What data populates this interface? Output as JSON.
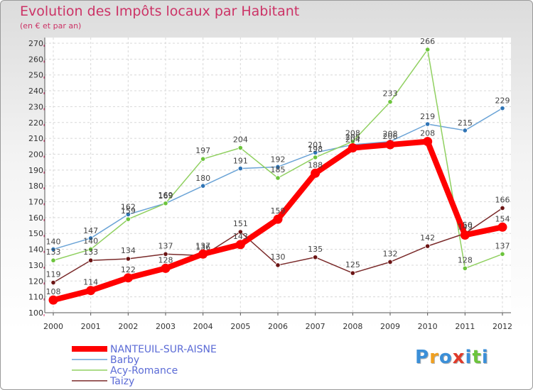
{
  "chart_data": {
    "type": "line",
    "title": "Evolution des Impôts locaux par Habitant",
    "subtitle": "(en € et par an)",
    "xlabel": "",
    "ylabel": "",
    "x": [
      "2000",
      "2001",
      "2002",
      "2003",
      "2004",
      "2005",
      "2006",
      "2007",
      "2008",
      "2009",
      "2010",
      "2011",
      "2012"
    ],
    "ylim": [
      100,
      270
    ],
    "yticks": [
      100,
      110,
      120,
      130,
      140,
      150,
      160,
      170,
      180,
      190,
      200,
      210,
      220,
      230,
      240,
      250,
      260,
      270
    ],
    "grid": true,
    "legend_position": "bottom-left",
    "series": [
      {
        "name": "Barby",
        "color": "#6aa3d6",
        "marker": "#2f74b5",
        "values": [
          140,
          147,
          162,
          169,
          180,
          191,
          192,
          201,
          206,
          208,
          219,
          215,
          229
        ]
      },
      {
        "name": "Acy-Romance",
        "color": "#90d060",
        "marker": "#6cc43c",
        "values": [
          133,
          140,
          159,
          169,
          197,
          204,
          185,
          198,
          208,
          233,
          266,
          128,
          137
        ]
      },
      {
        "name": "Taizy",
        "color": "#7a2a2a",
        "marker": "#6b1414",
        "values": [
          119,
          133,
          134,
          137,
          136,
          151,
          130,
          135,
          125,
          132,
          142,
          150,
          166
        ]
      },
      {
        "name": "NANTEUIL-SUR-AISNE",
        "color": "#ff0000",
        "marker": "#ff0000",
        "values": [
          108,
          114,
          122,
          128,
          137,
          143,
          159,
          188,
          204,
          206,
          208,
          149,
          154
        ]
      }
    ],
    "legend": [
      "NANTEUIL-SUR-AISNE",
      "Barby",
      "Acy-Romance",
      "Taizy"
    ]
  },
  "logo": {
    "text": "Proxiti",
    "letters": [
      {
        "ch": "P",
        "color": "#3b8fd8"
      },
      {
        "ch": "r",
        "color": "#f0a020"
      },
      {
        "ch": "o",
        "color": "#3b8fd8"
      },
      {
        "ch": "x",
        "color": "#e03a2a"
      },
      {
        "ch": "i",
        "color": "#3b8fd8"
      },
      {
        "ch": "t",
        "color": "#6cc43c"
      },
      {
        "ch": "i",
        "color": "#3b8fd8"
      }
    ]
  }
}
